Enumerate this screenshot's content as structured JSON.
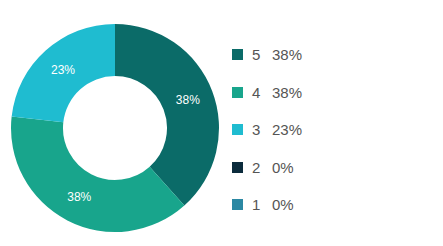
{
  "chart_data": {
    "type": "pie",
    "categories": [
      "5",
      "4",
      "3",
      "2",
      "1"
    ],
    "values": [
      38,
      38,
      23,
      0,
      0
    ],
    "value_labels": [
      "38%",
      "38%",
      "23%",
      "0%",
      "0%"
    ],
    "colors": [
      "#0b6b68",
      "#18a58c",
      "#1fbcd0",
      "#0b2b3c",
      "#2b88a3"
    ],
    "data_labels": true,
    "legend": "right",
    "donut": true
  }
}
